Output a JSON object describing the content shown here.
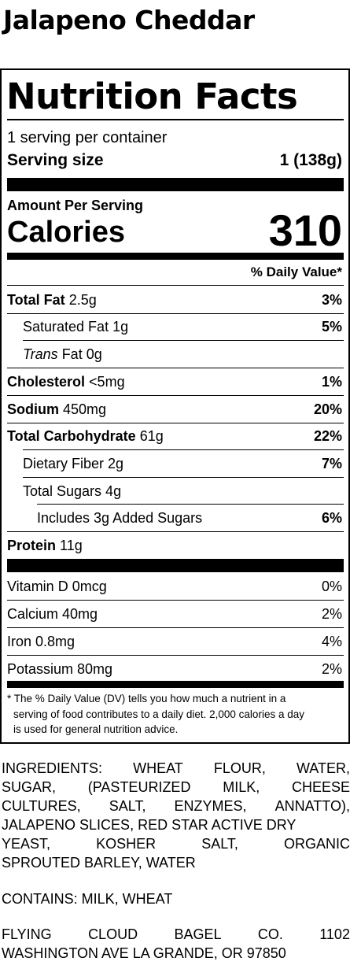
{
  "product": {
    "title": "Jalapeno Cheddar"
  },
  "label": {
    "heading": "Nutrition Facts",
    "servings_per_container": "1 serving per container",
    "serving_size_label": "Serving size",
    "serving_size_value": "1 (138g)",
    "amount_per_serving": "Amount Per Serving",
    "calories_label": "Calories",
    "calories_value": "310",
    "daily_value_header": "% Daily Value*",
    "nutrients": {
      "total_fat": {
        "name": "Total Fat",
        "amount": "2.5g",
        "dv": "3%"
      },
      "saturated_fat": {
        "name": "Saturated Fat 1g",
        "dv": "5%"
      },
      "trans_fat": {
        "name_italic": "Trans",
        "name_rest": " Fat 0g"
      },
      "cholesterol": {
        "name": "Cholesterol",
        "amount": "<5mg",
        "dv": "1%"
      },
      "sodium": {
        "name": "Sodium",
        "amount": "450mg",
        "dv": "20%"
      },
      "total_carb": {
        "name": "Total Carbohydrate",
        "amount": "61g",
        "dv": "22%"
      },
      "dietary_fiber": {
        "name": "Dietary Fiber 2g",
        "dv": "7%"
      },
      "total_sugars": {
        "name": "Total Sugars 4g"
      },
      "added_sugars": {
        "name": "Includes 3g Added Sugars",
        "dv": "6%"
      },
      "protein": {
        "name": "Protein",
        "amount": "11g"
      }
    },
    "vitamins": {
      "vitamin_d": {
        "name": "Vitamin D 0mcg",
        "dv": "0%"
      },
      "calcium": {
        "name": "Calcium 40mg",
        "dv": "2%"
      },
      "iron": {
        "name": "Iron 0.8mg",
        "dv": "4%"
      },
      "potassium": {
        "name": "Potassium 80mg",
        "dv": "2%"
      }
    },
    "footnote": {
      "line1": "* The % Daily Value (DV) tells you how much a nutrient in a",
      "line2": "serving of food contributes to a daily diet. 2,000 calories a day",
      "line3": "is used for general nutrition advice."
    }
  },
  "ingredients": {
    "lines": [
      [
        "INGREDIENTS:",
        "WHEAT",
        "FLOUR,",
        "WATER,"
      ],
      [
        "SUGAR,",
        "(PASTEURIZED",
        "MILK,",
        "CHEESE"
      ],
      [
        "CULTURES,",
        "SALT,",
        "ENZYMES,",
        "ANNATTO),"
      ],
      [
        "JALAPENO SLICES, RED STAR ACTIVE DRY"
      ],
      [
        "YEAST,",
        "KOSHER",
        "SALT,",
        "ORGANIC"
      ],
      [
        "SPROUTED BARLEY, WATER"
      ]
    ]
  },
  "contains": {
    "text": "CONTAINS: MILK, WHEAT"
  },
  "manufacturer": {
    "line1": [
      "FLYING",
      "CLOUD",
      "BAGEL",
      "CO.",
      "1102"
    ],
    "line2": "WASHINGTON AVE LA GRANDE, OR 97850"
  }
}
